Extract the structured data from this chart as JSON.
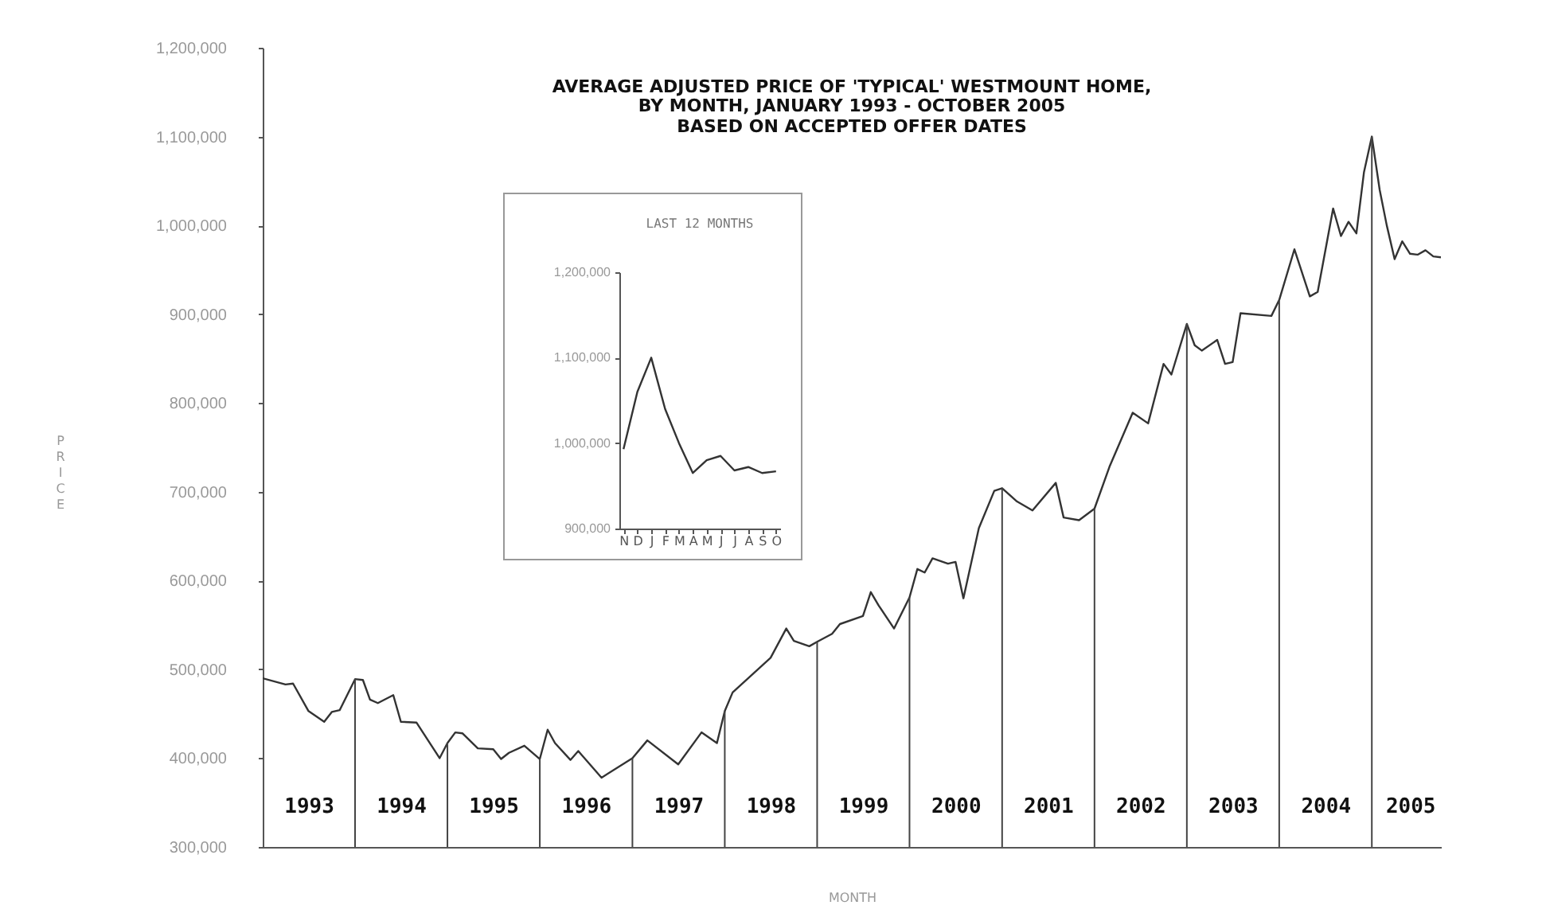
{
  "chart_data": [
    {
      "type": "line",
      "title": "AVERAGE ADJUSTED PRICE OF 'TYPICAL' WESTMOUNT HOME,",
      "subtitle": "BY MONTH, JANUARY 1993 - OCTOBER 2005\nBASED ON ACCEPTED OFFER DATES",
      "xlabel": "MONTH",
      "ylabel": "PRICE",
      "x": [
        "1993-01",
        "1993-04",
        "1993-05",
        "1993-07",
        "1993-09",
        "1993-10",
        "1993-11",
        "1994-01",
        "1994-02",
        "1994-03",
        "1994-04",
        "1994-06",
        "1994-07",
        "1994-09",
        "1994-12",
        "1995-01",
        "1995-02",
        "1995-03",
        "1995-05",
        "1995-07",
        "1995-08",
        "1995-09",
        "1995-11",
        "1996-01",
        "1996-02",
        "1996-03",
        "1996-05",
        "1996-06",
        "1996-09",
        "1997-01",
        "1997-03",
        "1997-07",
        "1997-10",
        "1997-12",
        "1998-01",
        "1998-02",
        "1998-07",
        "1998-09",
        "1998-10",
        "1998-12",
        "1999-01",
        "1999-03",
        "1999-04",
        "1999-07",
        "1999-08",
        "1999-09",
        "1999-11",
        "2000-01",
        "2000-02",
        "2000-03",
        "2000-04",
        "2000-06",
        "2000-07",
        "2000-08",
        "2000-10",
        "2000-12",
        "2001-01",
        "2001-03",
        "2001-05",
        "2001-08",
        "2001-09",
        "2001-11",
        "2002-01",
        "2002-03",
        "2002-06",
        "2002-08",
        "2002-10",
        "2002-11",
        "2003-01",
        "2003-02",
        "2003-03",
        "2003-05",
        "2003-06",
        "2003-07",
        "2003-08",
        "2003-12",
        "2004-01",
        "2004-03",
        "2004-05",
        "2004-06",
        "2004-08",
        "2004-09",
        "2004-10",
        "2004-11",
        "2004-12",
        "2005-01",
        "2005-02",
        "2005-03",
        "2005-04",
        "2005-05",
        "2005-06",
        "2005-07",
        "2005-08",
        "2005-09",
        "2005-10"
      ],
      "series": [
        {
          "color": "#333333",
          "values": [
            490000,
            483000,
            484000,
            453000,
            441000,
            452000,
            454000,
            489000,
            488000,
            466000,
            462000,
            471000,
            441000,
            440000,
            400000,
            417000,
            429000,
            428000,
            411000,
            410000,
            399000,
            406000,
            414000,
            399000,
            432000,
            417000,
            398000,
            408000,
            378000,
            400000,
            420000,
            393000,
            429000,
            417000,
            453000,
            474000,
            513000,
            546000,
            532000,
            526000,
            531000,
            540000,
            551000,
            560000,
            587000,
            572000,
            546000,
            581000,
            613000,
            609000,
            625000,
            619000,
            621000,
            580000,
            659000,
            701000,
            704000,
            689000,
            679000,
            710000,
            671000,
            668000,
            681000,
            728000,
            789000,
            777000,
            844000,
            832000,
            889000,
            865000,
            859000,
            871000,
            844000,
            846000,
            901000,
            898000,
            916000,
            973000,
            920000,
            925000,
            1019000,
            988000,
            1004000,
            991000,
            1060000,
            1100000,
            1040000,
            1000000,
            962000,
            982000,
            968000,
            967000,
            972000,
            965000,
            964000
          ]
        }
      ],
      "xlim": [
        "1993-01",
        "2005-10"
      ],
      "ylim": [
        300000,
        1200000
      ],
      "yticks": [
        {
          "value": 300000,
          "label": "300,000"
        },
        {
          "value": 400000,
          "label": "400,000"
        },
        {
          "value": 500000,
          "label": "500,000"
        },
        {
          "value": 600000,
          "label": "600,000"
        },
        {
          "value": 700000,
          "label": "700,000"
        },
        {
          "value": 800000,
          "label": "800,000"
        },
        {
          "value": 900000,
          "label": "900,000"
        },
        {
          "value": 1000000,
          "label": "1,000,000"
        },
        {
          "value": 1100000,
          "label": "1,100,000"
        },
        {
          "value": 1200000,
          "label": "1,200,000"
        }
      ],
      "xticks": [
        {
          "value": "1993-07",
          "label": "1993"
        },
        {
          "value": "1994-07",
          "label": "1994"
        },
        {
          "value": "1995-07",
          "label": "1995"
        },
        {
          "value": "1996-07",
          "label": "1996"
        },
        {
          "value": "1997-07",
          "label": "1997"
        },
        {
          "value": "1998-07",
          "label": "1998"
        },
        {
          "value": "1999-07",
          "label": "1999"
        },
        {
          "value": "2000-07",
          "label": "2000"
        },
        {
          "value": "2001-07",
          "label": "2001"
        },
        {
          "value": "2002-07",
          "label": "2002"
        },
        {
          "value": "2003-07",
          "label": "2003"
        },
        {
          "value": "2004-07",
          "label": "2004"
        },
        {
          "value": "2005-06",
          "label": "2005"
        }
      ],
      "ref_lines": [
        {
          "axis": "x",
          "value": "1994-01"
        },
        {
          "axis": "x",
          "value": "1995-01"
        },
        {
          "axis": "x",
          "value": "1996-01"
        },
        {
          "axis": "x",
          "value": "1997-01"
        },
        {
          "axis": "x",
          "value": "1998-01"
        },
        {
          "axis": "x",
          "value": "1999-01"
        },
        {
          "axis": "x",
          "value": "2000-01"
        },
        {
          "axis": "x",
          "value": "2001-01"
        },
        {
          "axis": "x",
          "value": "2002-01"
        },
        {
          "axis": "x",
          "value": "2003-01"
        },
        {
          "axis": "x",
          "value": "2004-01"
        },
        {
          "axis": "x",
          "value": "2005-01"
        }
      ],
      "grid": false
    },
    {
      "type": "line",
      "title": "LAST 12 MONTHS",
      "categories": [
        "N",
        "D",
        "J",
        "F",
        "M",
        "A",
        "M",
        "J",
        "J",
        "A",
        "S",
        "O"
      ],
      "series": [
        {
          "color": "#333333",
          "values": [
            993000,
            1060000,
            1100000,
            1040000,
            1000000,
            965000,
            980000,
            985000,
            968000,
            972000,
            965000,
            967000
          ]
        }
      ],
      "ylim": [
        900000,
        1200000
      ],
      "yticks": [
        {
          "value": 900000,
          "label": "900,000"
        },
        {
          "value": 1000000,
          "label": "1,000,000"
        },
        {
          "value": 1100000,
          "label": "1,100,000"
        },
        {
          "value": 1200000,
          "label": "1,200,000"
        }
      ],
      "grid": false
    }
  ]
}
